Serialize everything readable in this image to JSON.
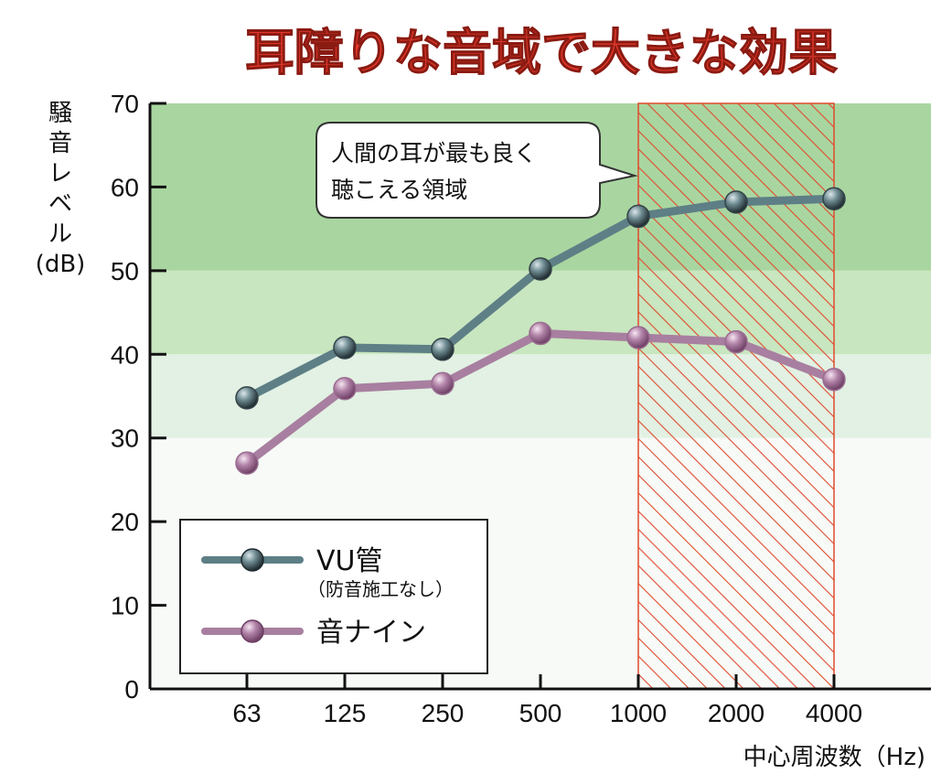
{
  "chart_data": {
    "type": "line",
    "title": "耳障りな音域で大きな効果",
    "ylabel": "騒音レベル(dB)",
    "ylabel_lines": [
      "騒",
      "音",
      "レ",
      "ベ",
      "ル",
      "(dB)"
    ],
    "xlabel": "中心周波数（Hz)",
    "categories": [
      "63",
      "125",
      "250",
      "500",
      "1000",
      "2000",
      "4000"
    ],
    "ylim": [
      0,
      70
    ],
    "yticks": [
      0,
      10,
      20,
      30,
      40,
      50,
      60,
      70
    ],
    "grid": false,
    "legend_position": "bottom-left",
    "series": [
      {
        "name": "VU管",
        "note": "（防音施工なし）",
        "color": "#5e7f86",
        "marker": "#34444a",
        "values": [
          34.8,
          40.8,
          40.6,
          50.2,
          56.5,
          58.2,
          58.6
        ]
      },
      {
        "name": "音ナイン",
        "color": "#a87fa0",
        "marker": "#9a6d91",
        "values": [
          27.0,
          35.9,
          36.5,
          42.5,
          42.0,
          41.5,
          37.0
        ]
      }
    ],
    "highlight": {
      "from": "1000",
      "to": "4000",
      "label_lines": [
        "人間の耳が最も良く",
        "聴こえる領域"
      ],
      "color": "#e04a2e"
    },
    "bands": [
      {
        "from": 50,
        "to": 70,
        "color": "#a9d6a0"
      },
      {
        "from": 40,
        "to": 50,
        "color": "#c8e6bf"
      },
      {
        "from": 30,
        "to": 40,
        "color": "#e2f1e3"
      },
      {
        "from": 0,
        "to": 30,
        "color": "#f7faf7"
      }
    ],
    "title_color": "#e5372b"
  }
}
